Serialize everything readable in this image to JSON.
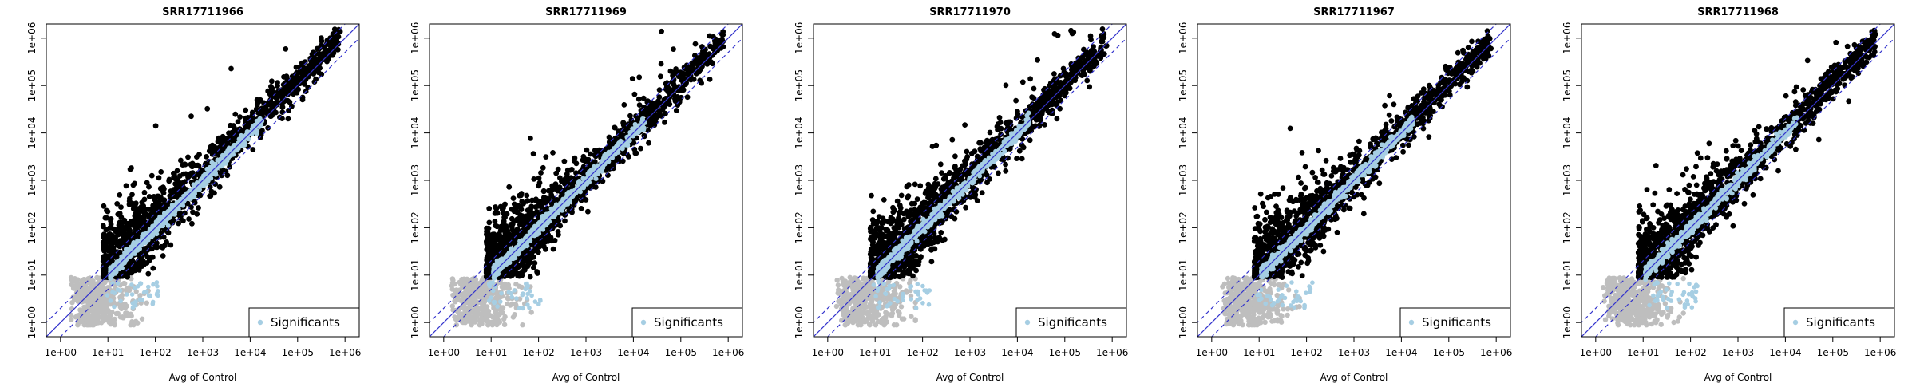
{
  "chart_data": [
    {
      "type": "scatter",
      "title": "SRR17711966",
      "xlabel": "Avg of Control",
      "ylabel": "",
      "x_scale": "log10",
      "y_scale": "log10",
      "xlim": [
        1,
        1000000
      ],
      "ylim": [
        1,
        1000000
      ],
      "x_ticks": [
        "1e+00",
        "1e+01",
        "1e+02",
        "1e+03",
        "1e+04",
        "1e+05",
        "1e+06"
      ],
      "y_ticks": [
        "1e+00",
        "1e+01",
        "1e+02",
        "1e+03",
        "1e+04",
        "1e+05",
        "1e+06"
      ],
      "grid": false,
      "legend": {
        "position": "bottom-right",
        "entries": [
          "Significants"
        ]
      },
      "reference_lines": [
        {
          "style": "solid",
          "color": "#3333cc",
          "relation": "y = x"
        },
        {
          "style": "dashed",
          "color": "#3333cc",
          "relation": "y = 2x"
        },
        {
          "style": "dashed",
          "color": "#3333cc",
          "relation": "y = x/2"
        }
      ],
      "series": [
        {
          "name": "",
          "color": "#000000",
          "description_points": [
            [
              20,
              60
            ],
            [
              100,
              400
            ],
            [
              1000,
              2500
            ],
            [
              10000,
              25000
            ],
            [
              100000,
              200000
            ],
            [
              300000,
              600000
            ]
          ]
        },
        {
          "name": "Significants",
          "color": "#a6cee3",
          "description_points": [
            [
              10,
              10
            ],
            [
              100,
              110
            ],
            [
              1000,
              1100
            ],
            [
              10000,
              9000
            ]
          ]
        },
        {
          "name": "",
          "color": "#bebebe",
          "description_points": [
            [
              2,
              1.2
            ],
            [
              10,
              2
            ],
            [
              30,
              3
            ]
          ]
        }
      ]
    },
    {
      "type": "scatter",
      "title": "SRR17711969",
      "xlabel": "Avg of Control",
      "ylabel": "",
      "x_scale": "log10",
      "y_scale": "log10",
      "xlim": [
        1,
        1000000
      ],
      "ylim": [
        1,
        1000000
      ],
      "x_ticks": [
        "1e+00",
        "1e+01",
        "1e+02",
        "1e+03",
        "1e+04",
        "1e+05",
        "1e+06"
      ],
      "y_ticks": [
        "1e+00",
        "1e+01",
        "1e+02",
        "1e+03",
        "1e+04",
        "1e+05",
        "1e+06"
      ],
      "grid": false,
      "legend": {
        "position": "bottom-right",
        "entries": [
          "Significants"
        ]
      },
      "reference_lines": [
        {
          "style": "solid",
          "color": "#3333cc",
          "relation": "y = x"
        },
        {
          "style": "dashed",
          "color": "#3333cc",
          "relation": "y = 2x"
        },
        {
          "style": "dashed",
          "color": "#3333cc",
          "relation": "y = x/2"
        }
      ],
      "series": [
        {
          "name": "",
          "color": "#000000",
          "description_points": [
            [
              20,
              30
            ],
            [
              100,
              200
            ],
            [
              1000,
              1500
            ],
            [
              10000,
              15000
            ],
            [
              100000,
              300000
            ]
          ]
        },
        {
          "name": "Significants",
          "color": "#a6cee3",
          "description_points": [
            [
              10,
              10
            ],
            [
              100,
              100
            ],
            [
              1000,
              1000
            ],
            [
              10000,
              10000
            ]
          ]
        },
        {
          "name": "",
          "color": "#bebebe",
          "description_points": [
            [
              2,
              1.5
            ],
            [
              10,
              3
            ],
            [
              30,
              2
            ]
          ]
        }
      ]
    },
    {
      "type": "scatter",
      "title": "SRR17711970",
      "xlabel": "Avg of Control",
      "ylabel": "",
      "x_scale": "log10",
      "y_scale": "log10",
      "xlim": [
        1,
        1000000
      ],
      "ylim": [
        1,
        1000000
      ],
      "x_ticks": [
        "1e+00",
        "1e+01",
        "1e+02",
        "1e+03",
        "1e+04",
        "1e+05",
        "1e+06"
      ],
      "y_ticks": [
        "1e+00",
        "1e+01",
        "1e+02",
        "1e+03",
        "1e+04",
        "1e+05",
        "1e+06"
      ],
      "grid": false,
      "legend": {
        "position": "bottom-right",
        "entries": [
          "Significants"
        ]
      },
      "reference_lines": [
        {
          "style": "solid",
          "color": "#3333cc",
          "relation": "y = x"
        },
        {
          "style": "dashed",
          "color": "#3333cc",
          "relation": "y = 2x"
        },
        {
          "style": "dashed",
          "color": "#3333cc",
          "relation": "y = x/2"
        }
      ],
      "series": [
        {
          "name": "",
          "color": "#000000",
          "description_points": [
            [
              20,
              40
            ],
            [
              100,
              200
            ],
            [
              1000,
              2500
            ],
            [
              10000,
              20000
            ],
            [
              100000,
              150000
            ]
          ]
        },
        {
          "name": "Significants",
          "color": "#a6cee3",
          "description_points": [
            [
              10,
              10
            ],
            [
              100,
              100
            ],
            [
              1000,
              1000
            ],
            [
              10000,
              10000
            ]
          ]
        },
        {
          "name": "",
          "color": "#bebebe",
          "description_points": [
            [
              2,
              1.5
            ],
            [
              10,
              3
            ],
            [
              30,
              2
            ]
          ]
        }
      ]
    },
    {
      "type": "scatter",
      "title": "SRR17711967",
      "xlabel": "Avg of Control",
      "ylabel": "",
      "x_scale": "log10",
      "y_scale": "log10",
      "xlim": [
        1,
        1000000
      ],
      "ylim": [
        1,
        1000000
      ],
      "x_ticks": [
        "1e+00",
        "1e+01",
        "1e+02",
        "1e+03",
        "1e+04",
        "1e+05",
        "1e+06"
      ],
      "y_ticks": [
        "1e+00",
        "1e+01",
        "1e+02",
        "1e+03",
        "1e+04",
        "1e+05",
        "1e+06"
      ],
      "grid": false,
      "legend": {
        "position": "bottom-right",
        "entries": [
          "Significants"
        ]
      },
      "reference_lines": [
        {
          "style": "solid",
          "color": "#3333cc",
          "relation": "y = x"
        },
        {
          "style": "dashed",
          "color": "#3333cc",
          "relation": "y = 2x"
        },
        {
          "style": "dashed",
          "color": "#3333cc",
          "relation": "y = x/2"
        }
      ],
      "series": [
        {
          "name": "",
          "color": "#000000",
          "description_points": [
            [
              20,
              40
            ],
            [
              100,
              250
            ],
            [
              1000,
              3000
            ],
            [
              10000,
              30000
            ],
            [
              100000,
              400000
            ]
          ]
        },
        {
          "name": "Significants",
          "color": "#a6cee3",
          "description_points": [
            [
              10,
              10
            ],
            [
              100,
              100
            ],
            [
              1000,
              1000
            ],
            [
              10000,
              10000
            ]
          ]
        },
        {
          "name": "",
          "color": "#bebebe",
          "description_points": [
            [
              2,
              1.5
            ],
            [
              10,
              3
            ],
            [
              50,
              2
            ]
          ]
        }
      ]
    },
    {
      "type": "scatter",
      "title": "SRR17711968",
      "xlabel": "Avg of Control",
      "ylabel": "",
      "x_scale": "log10",
      "y_scale": "log10",
      "xlim": [
        1,
        1000000
      ],
      "ylim": [
        1,
        1000000
      ],
      "x_ticks": [
        "1e+00",
        "1e+01",
        "1e+02",
        "1e+03",
        "1e+04",
        "1e+05",
        "1e+06"
      ],
      "y_ticks": [
        "1e+00",
        "1e+01",
        "1e+02",
        "1e+03",
        "1e+04",
        "1e+05",
        "1e+06"
      ],
      "grid": false,
      "legend": {
        "position": "bottom-right",
        "entries": [
          "Significants"
        ]
      },
      "reference_lines": [
        {
          "style": "solid",
          "color": "#3333cc",
          "relation": "y = x"
        },
        {
          "style": "dashed",
          "color": "#3333cc",
          "relation": "y = 2x"
        },
        {
          "style": "dashed",
          "color": "#3333cc",
          "relation": "y = x/2"
        }
      ],
      "series": [
        {
          "name": "",
          "color": "#000000",
          "description_points": [
            [
              20,
              50
            ],
            [
              100,
              300
            ],
            [
              1000,
              2000
            ],
            [
              10000,
              20000
            ],
            [
              100000,
              200000
            ]
          ]
        },
        {
          "name": "Significants",
          "color": "#a6cee3",
          "description_points": [
            [
              10,
              10
            ],
            [
              100,
              100
            ],
            [
              1000,
              1000
            ],
            [
              10000,
              10000
            ]
          ]
        },
        {
          "name": "",
          "color": "#bebebe",
          "description_points": [
            [
              2,
              1.5
            ],
            [
              10,
              3
            ],
            [
              30,
              2
            ]
          ]
        }
      ]
    }
  ]
}
